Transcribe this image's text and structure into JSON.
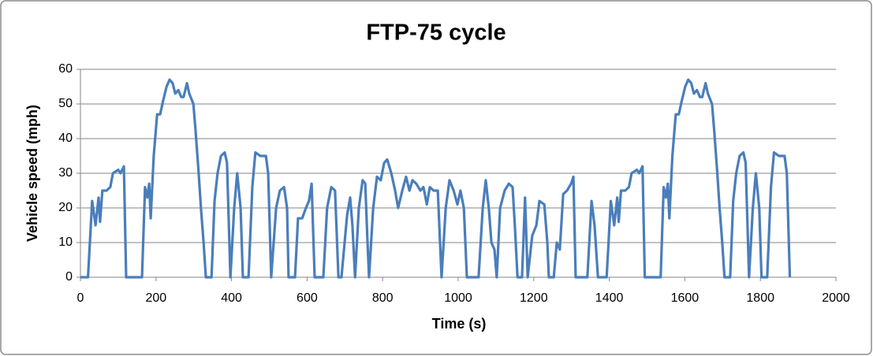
{
  "chart_data": {
    "type": "line",
    "title": "FTP-75 cycle",
    "x_label": "Time (s)",
    "y_label": "Vehicle speed (mph)",
    "xlim": [
      0,
      2000
    ],
    "xticks": [
      0,
      200,
      400,
      600,
      800,
      1000,
      1200,
      1400,
      1600,
      1800,
      2000
    ],
    "ylim": [
      0,
      60
    ],
    "yticks": [
      0,
      10,
      20,
      30,
      40,
      50,
      60
    ],
    "grid": true,
    "x": [
      0,
      20,
      31,
      40,
      48,
      52,
      58,
      69,
      79,
      86,
      100,
      106,
      115,
      121,
      163,
      171,
      177,
      182,
      186,
      194,
      203,
      211,
      219,
      228,
      236,
      244,
      251,
      259,
      267,
      273,
      282,
      288,
      299,
      305,
      313,
      319,
      326,
      332,
      347,
      355,
      363,
      372,
      382,
      388,
      397,
      407,
      415,
      424,
      430,
      445,
      455,
      463,
      476,
      491,
      497,
      505,
      518,
      528,
      539,
      547,
      551,
      568,
      576,
      587,
      597,
      605,
      612,
      620,
      643,
      653,
      664,
      674,
      683,
      691,
      706,
      714,
      720,
      727,
      737,
      747,
      754,
      760,
      764,
      775,
      785,
      795,
      804,
      812,
      823,
      833,
      841,
      852,
      862,
      871,
      879,
      889,
      900,
      908,
      917,
      925,
      935,
      946,
      952,
      956,
      967,
      977,
      988,
      998,
      1006,
      1015,
      1023,
      1054,
      1065,
      1073,
      1081,
      1088,
      1096,
      1102,
      1111,
      1123,
      1134,
      1144,
      1150,
      1157,
      1169,
      1177,
      1184,
      1196,
      1207,
      1215,
      1228,
      1236,
      1240,
      1253,
      1261,
      1269,
      1278,
      1288,
      1299,
      1305,
      1311,
      1342,
      1353,
      1361,
      1370,
      1393,
      1404,
      1413,
      1421,
      1425,
      1431,
      1442,
      1452,
      1459,
      1473,
      1479,
      1488,
      1494,
      1536,
      1544,
      1550,
      1555,
      1559,
      1567,
      1576,
      1584,
      1592,
      1601,
      1609,
      1617,
      1624,
      1632,
      1640,
      1646,
      1655,
      1661,
      1672,
      1678,
      1686,
      1692,
      1699,
      1705,
      1720,
      1728,
      1736,
      1745,
      1755,
      1761,
      1770,
      1780,
      1788,
      1797,
      1803,
      1818,
      1828,
      1836,
      1849,
      1864,
      1870,
      1878
    ],
    "series": [
      {
        "name": "Vehicle speed",
        "color": "#4a7ebb",
        "values": [
          0,
          0,
          22,
          15,
          23,
          16,
          25,
          25,
          26,
          30,
          31,
          30,
          32,
          0,
          0,
          26,
          23,
          27,
          17,
          35,
          47,
          47,
          51,
          55,
          57,
          56,
          53,
          54,
          52,
          52,
          56,
          53,
          50,
          42,
          30,
          20,
          10,
          0,
          0,
          22,
          30,
          35,
          36,
          33,
          0,
          20,
          30,
          20,
          0,
          0,
          26,
          36,
          35,
          35,
          30,
          0,
          20,
          25,
          26,
          20,
          0,
          0,
          17,
          17,
          20,
          22,
          27,
          0,
          0,
          20,
          26,
          25,
          0,
          0,
          18,
          23,
          15,
          0,
          20,
          28,
          27,
          10,
          0,
          20,
          29,
          28,
          33,
          34,
          30,
          25,
          20,
          25,
          29,
          25,
          28,
          27,
          25,
          26,
          21,
          26,
          25,
          25,
          10,
          0,
          20,
          28,
          25,
          21,
          25,
          20,
          0,
          0,
          20,
          28,
          20,
          10,
          8,
          0,
          20,
          25,
          27,
          26,
          15,
          0,
          0,
          23,
          0,
          12,
          15,
          22,
          21,
          10,
          0,
          0,
          10,
          8,
          24,
          25,
          27,
          29,
          0,
          0,
          22,
          15,
          0,
          0,
          22,
          15,
          23,
          16,
          25,
          25,
          26,
          30,
          31,
          30,
          32,
          0,
          0,
          26,
          23,
          27,
          17,
          35,
          47,
          47,
          51,
          55,
          57,
          56,
          53,
          54,
          52,
          52,
          56,
          53,
          50,
          42,
          30,
          20,
          10,
          0,
          0,
          22,
          30,
          35,
          36,
          33,
          0,
          20,
          30,
          20,
          0,
          0,
          26,
          36,
          35,
          35,
          30,
          0
        ]
      }
    ]
  }
}
